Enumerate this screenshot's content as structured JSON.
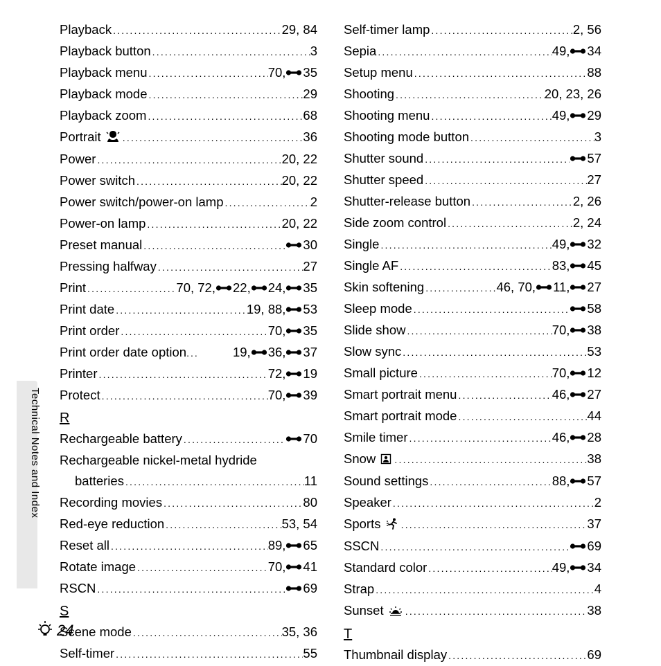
{
  "side_label": "Technical Notes and Index",
  "page_number": "24",
  "ref_icon_svg": "<svg width='24' height='12' viewBox='0 0 24 12'><circle cx='4.5' cy='6' r='3.6' fill='#000'/><circle cx='19.5' cy='6' r='3.6' fill='#000'/><rect x='4' y='4.4' width='16' height='3.2' fill='#000'/></svg>",
  "portrait_icon_svg": "<svg width='20' height='18' viewBox='0 0 20 18'><path d='M10 1 C6 1 5 4 5 6 C5 9 7 11 10 11 C13 11 15 9 15 6 C15 4 14 1 10 1 Z M5 12 C3 13 2 16 2 17 L18 17 C18 16 17 13 15 12 C14 14 11 14 10 14 C9 14 6 14 5 12 Z' fill='#000'/><path d='M3 5 L1 3 M17 5 L19 3' stroke='#000' stroke-width='1.3'/></svg>",
  "snow_icon_svg": "<svg width='16' height='16' viewBox='0 0 16 16'><rect x='1.5' y='1.5' width='13' height='13' fill='none' stroke='#000' stroke-width='1.4'/><circle cx='8' cy='6' r='2.2' fill='#000'/><path d='M4 13 C4 10 6 9 8 9 C10 9 12 10 12 13 Z' fill='#000'/></svg>",
  "sports_icon_svg": "<svg width='18' height='18' viewBox='0 0 18 18'><circle cx='12' cy='3.5' r='2' fill='#000'/><path d='M11 6 L8 10 L11 12 L10 17 M8 10 L4 11 M11 7 L15 9' stroke='#000' stroke-width='1.8' fill='none' stroke-linecap='round'/><path d='M1 6 L3 6 M1 9 L4 9 M1 12 L3 12' stroke='#000' stroke-width='1.2'/></svg>",
  "sunset_icon_svg": "<svg width='20' height='16' viewBox='0 0 20 16'><path d='M3 12 L17 12' stroke='#000' stroke-width='1.6'/><path d='M5 12 A5 5 0 0 1 15 12 Z' fill='#000'/><path d='M10 2 L10 4 M3 5 L4.5 6.5 M17 5 L15.5 6.5 M1 10 L3 10 M17 10 L19 10' stroke='#000' stroke-width='1.4'/><path d='M2 15 L18 15' stroke='#000' stroke-width='1.3'/></svg>",
  "bulb_icon_svg": "<svg width='22' height='24' viewBox='0 0 22 24'><circle cx='11' cy='13' r='6' fill='none' stroke='#000' stroke-width='1.8'/><rect x='8.5' y='18' width='5' height='4' fill='#000'/><path d='M11 1 L11 4 M3 6 L5 8 M19 6 L17 8 M1 13 L4 13 M18 13 L21 13' stroke='#000' stroke-width='1.6'/></svg>",
  "columns": [
    [
      {
        "term": "Playback",
        "pages": [
          {
            "t": "29, 84"
          }
        ]
      },
      {
        "term": "Playback button",
        "pages": [
          {
            "t": "3"
          }
        ]
      },
      {
        "term": "Playback menu",
        "pages": [
          {
            "t": "70, "
          },
          {
            "r": "35"
          }
        ]
      },
      {
        "term": "Playback mode",
        "pages": [
          {
            "t": "29"
          }
        ]
      },
      {
        "term": "Playback zoom",
        "pages": [
          {
            "t": "68"
          }
        ]
      },
      {
        "term": "Portrait ",
        "icon": "portrait",
        "pages": [
          {
            "t": "36"
          }
        ]
      },
      {
        "term": "Power",
        "pages": [
          {
            "t": "20, 22"
          }
        ]
      },
      {
        "term": "Power switch",
        "pages": [
          {
            "t": "20, 22"
          }
        ]
      },
      {
        "term": "Power switch/power-on lamp",
        "pages": [
          {
            "t": "2"
          }
        ]
      },
      {
        "term": "Power-on lamp",
        "pages": [
          {
            "t": "20, 22"
          }
        ]
      },
      {
        "term": "Preset manual",
        "pages": [
          {
            "r": "30"
          }
        ]
      },
      {
        "term": "Pressing halfway",
        "pages": [
          {
            "t": "27"
          }
        ]
      },
      {
        "term": "Print",
        "pages": [
          {
            "t": "70, 72, "
          },
          {
            "r": "22"
          },
          {
            "t": ", "
          },
          {
            "r": "24"
          },
          {
            "t": ", "
          },
          {
            "r": "35"
          }
        ]
      },
      {
        "term": "Print date",
        "pages": [
          {
            "t": "19, 88, "
          },
          {
            "r": "53"
          }
        ]
      },
      {
        "term": "Print order",
        "pages": [
          {
            "t": "70, "
          },
          {
            "r": "35"
          }
        ]
      },
      {
        "term": "Print order date option",
        "nodots": true,
        "pages": [
          {
            "t": " 19, "
          },
          {
            "r": "36"
          },
          {
            "t": ", "
          },
          {
            "r": "37"
          }
        ]
      },
      {
        "term": "Printer",
        "pages": [
          {
            "t": "72, "
          },
          {
            "r": "19"
          }
        ]
      },
      {
        "term": "Protect",
        "pages": [
          {
            "t": "70, "
          },
          {
            "r": "39"
          }
        ]
      },
      {
        "section": "R"
      },
      {
        "term": "Rechargeable battery",
        "pages": [
          {
            "r": "70"
          }
        ]
      },
      {
        "term": "Rechargeable nickel-metal hydride",
        "wrap": true
      },
      {
        "cont": true,
        "term": "batteries",
        "pages": [
          {
            "t": "11"
          }
        ]
      },
      {
        "term": "Recording movies",
        "pages": [
          {
            "t": "80"
          }
        ]
      },
      {
        "term": "Red-eye reduction",
        "pages": [
          {
            "t": "53, 54"
          }
        ]
      },
      {
        "term": "Reset all",
        "pages": [
          {
            "t": "89, "
          },
          {
            "r": "65"
          }
        ]
      },
      {
        "term": "Rotate image",
        "pages": [
          {
            "t": "70, "
          },
          {
            "r": "41"
          }
        ]
      },
      {
        "term": "RSCN",
        "pages": [
          {
            "r": "69"
          }
        ]
      },
      {
        "section": "S"
      },
      {
        "term": "Scene mode",
        "pages": [
          {
            "t": "35, 36"
          }
        ]
      },
      {
        "term": "Self-timer",
        "pages": [
          {
            "t": "55"
          }
        ]
      }
    ],
    [
      {
        "term": "Self-timer lamp",
        "pages": [
          {
            "t": "2, 56"
          }
        ]
      },
      {
        "term": "Sepia",
        "pages": [
          {
            "t": "49, "
          },
          {
            "r": "34"
          }
        ]
      },
      {
        "term": "Setup menu",
        "pages": [
          {
            "t": "88"
          }
        ]
      },
      {
        "term": "Shooting",
        "pages": [
          {
            "t": "20, 23, 26"
          }
        ]
      },
      {
        "term": "Shooting menu",
        "pages": [
          {
            "t": "49, "
          },
          {
            "r": "29"
          }
        ]
      },
      {
        "term": "Shooting mode button",
        "pages": [
          {
            "t": "3"
          }
        ]
      },
      {
        "term": "Shutter sound",
        "pages": [
          {
            "r": "57"
          }
        ]
      },
      {
        "term": "Shutter speed",
        "pages": [
          {
            "t": "27"
          }
        ]
      },
      {
        "term": "Shutter-release button",
        "pages": [
          {
            "t": "2, 26"
          }
        ]
      },
      {
        "term": "Side zoom control",
        "pages": [
          {
            "t": "2, 24"
          }
        ]
      },
      {
        "term": "Single",
        "pages": [
          {
            "t": "49, "
          },
          {
            "r": "32"
          }
        ]
      },
      {
        "term": "Single AF",
        "pages": [
          {
            "t": "83, "
          },
          {
            "r": "45"
          }
        ]
      },
      {
        "term": "Skin softening",
        "pages": [
          {
            "t": "46, 70, "
          },
          {
            "r": "11"
          },
          {
            "t": ", "
          },
          {
            "r": "27"
          }
        ]
      },
      {
        "term": "Sleep mode",
        "pages": [
          {
            "r": "58"
          }
        ]
      },
      {
        "term": "Slide show",
        "pages": [
          {
            "t": "70, "
          },
          {
            "r": "38"
          }
        ]
      },
      {
        "term": "Slow sync",
        "pages": [
          {
            "t": "53"
          }
        ]
      },
      {
        "term": "Small picture",
        "pages": [
          {
            "t": "70, "
          },
          {
            "r": "12"
          }
        ]
      },
      {
        "term": "Smart portrait menu",
        "pages": [
          {
            "t": "46, "
          },
          {
            "r": "27"
          }
        ]
      },
      {
        "term": "Smart portrait mode",
        "pages": [
          {
            "t": "44"
          }
        ]
      },
      {
        "term": "Smile timer",
        "pages": [
          {
            "t": "46, "
          },
          {
            "r": "28"
          }
        ]
      },
      {
        "term": "Snow ",
        "icon": "snow",
        "pages": [
          {
            "t": "38"
          }
        ]
      },
      {
        "term": "Sound settings",
        "pages": [
          {
            "t": "88, "
          },
          {
            "r": "57"
          }
        ]
      },
      {
        "term": "Speaker",
        "pages": [
          {
            "t": "2"
          }
        ]
      },
      {
        "term": "Sports ",
        "icon": "sports",
        "pages": [
          {
            "t": "37"
          }
        ]
      },
      {
        "term": "SSCN",
        "pages": [
          {
            "r": "69"
          }
        ]
      },
      {
        "term": "Standard color",
        "pages": [
          {
            "t": "49, "
          },
          {
            "r": "34"
          }
        ]
      },
      {
        "term": "Strap",
        "pages": [
          {
            "t": "4"
          }
        ]
      },
      {
        "term": "Sunset ",
        "icon": "sunset",
        "pages": [
          {
            "t": "38"
          }
        ]
      },
      {
        "section": "T"
      },
      {
        "term": "Thumbnail display",
        "pages": [
          {
            "t": "69"
          }
        ]
      }
    ]
  ]
}
